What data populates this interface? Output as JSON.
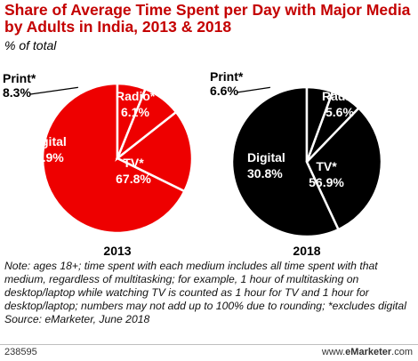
{
  "title": "Share of Average Time Spent per Day with Major Media by Adults in India, 2013 & 2018",
  "subtitle": "% of total",
  "chart_data": [
    {
      "type": "pie",
      "label": "2013",
      "slices": [
        {
          "name": "TV*",
          "value": 67.8,
          "display": "67.8%"
        },
        {
          "name": "Digital",
          "value": 17.9,
          "display": "17.9%"
        },
        {
          "name": "Print*",
          "value": 8.3,
          "display": "8.3%"
        },
        {
          "name": "Radio*",
          "value": 6.1,
          "display": "6.1%"
        }
      ],
      "fill": "#ee0000",
      "stroke": "#ffffff"
    },
    {
      "type": "pie",
      "label": "2018",
      "slices": [
        {
          "name": "TV*",
          "value": 56.9,
          "display": "56.9%"
        },
        {
          "name": "Digital",
          "value": 30.8,
          "display": "30.8%"
        },
        {
          "name": "Print*",
          "value": 6.6,
          "display": "6.6%"
        },
        {
          "name": "Radio*",
          "value": 5.6,
          "display": "5.6%"
        }
      ],
      "fill": "#000000",
      "stroke": "#ffffff"
    }
  ],
  "note": "Note: ages 18+; time spent with each medium includes all time spent with that medium, regardless of multitasking; for example, 1 hour of multitasking on desktop/laptop while watching TV is counted as 1 hour for TV and 1 hour for desktop/laptop; numbers may not add up to 100% due to rounding; *excludes digital",
  "source": "Source: eMarketer, June 2018",
  "chart_id": "238595",
  "brand": {
    "prefix": "www.",
    "name": "eMarketer",
    "suffix": ".com"
  },
  "colors": {
    "title": "#c40000",
    "pie_2013": "#ee0000",
    "pie_2018": "#000000",
    "label_text": "#ffffff"
  }
}
